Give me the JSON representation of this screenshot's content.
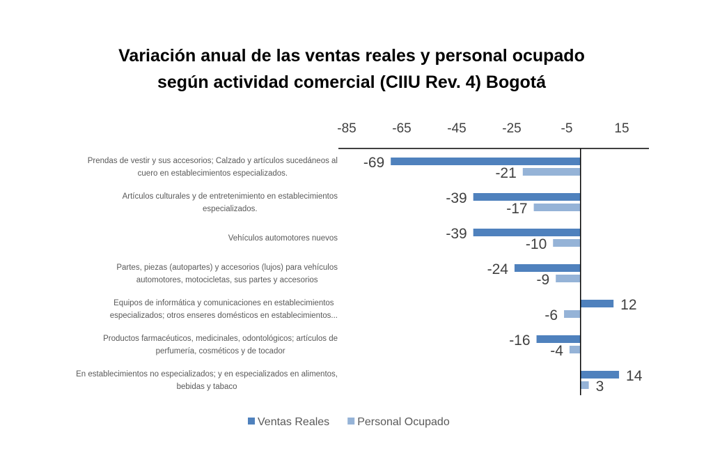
{
  "chart_data": {
    "type": "bar",
    "orientation": "horizontal",
    "title": [
      "Variación anual de las ventas reales y personal ocupado",
      "según actividad comercial (CIIU Rev. 4) Bogotá"
    ],
    "xlim": [
      -85,
      15
    ],
    "ticks": [
      -85,
      -65,
      -45,
      -25,
      -5,
      15
    ],
    "tick_labels": [
      "-85",
      "-65",
      "-45",
      "-25",
      "-5",
      "15"
    ],
    "axis_position": "top",
    "grid": false,
    "legend_position": "bottom",
    "categories": [
      [
        "Prendas de vestir y sus accesorios; Calzado y artículos sucedáneos al",
        "cuero en establecimientos especializados."
      ],
      [
        "Artículos culturales y de entretenimiento en establecimientos",
        "especializados."
      ],
      [
        "Vehículos automotores nuevos"
      ],
      [
        "Partes, piezas (autopartes) y accesorios (lujos) para vehículos",
        "automotores, motocicletas, sus partes y accesorios"
      ],
      [
        "Equipos de informática y comunicaciones en establecimientos",
        "especializados;  otros enseres domésticos en establecimientos..."
      ],
      [
        "Productos farmacéuticos, medicinales, odontológicos; artículos de",
        "perfumería, cosméticos y de tocador"
      ],
      [
        "En establecimientos no especializados; y en especializados en alimentos,",
        "bebidas y tabaco"
      ]
    ],
    "series": [
      {
        "name": "Ventas Reales",
        "color": "#4f81bd",
        "values": [
          -69,
          -39,
          -39,
          -24,
          12,
          -16,
          14
        ]
      },
      {
        "name": "Personal Ocupado",
        "color": "#95b3d7",
        "values": [
          -21,
          -17,
          -10,
          -9,
          -6,
          -4,
          3
        ]
      }
    ]
  }
}
